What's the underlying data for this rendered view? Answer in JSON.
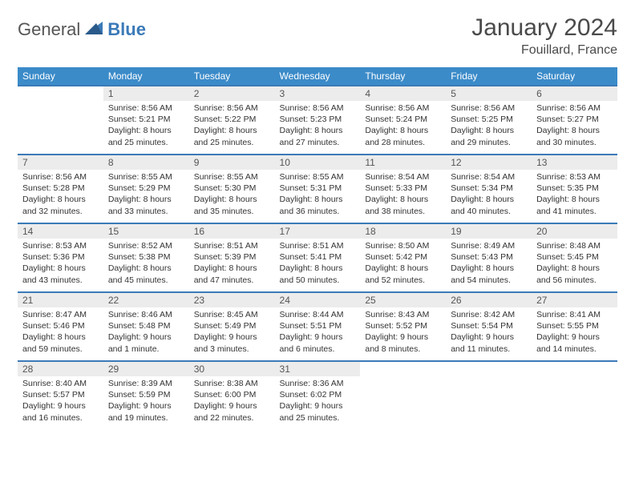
{
  "logo": {
    "general": "General",
    "blue": "Blue"
  },
  "title": "January 2024",
  "subtitle": "Fouillard, France",
  "colors": {
    "brand_blue": "#3b7ab8",
    "header_blue": "#3b8bc9",
    "daynum_bg": "#ececec",
    "text": "#333333",
    "title_text": "#4a4a4a"
  },
  "calendar": {
    "days_of_week": [
      "Sunday",
      "Monday",
      "Tuesday",
      "Wednesday",
      "Thursday",
      "Friday",
      "Saturday"
    ],
    "start_offset": 1,
    "num_days": 31,
    "entries": {
      "1": {
        "sunrise": "8:56 AM",
        "sunset": "5:21 PM",
        "daylight": "8 hours and 25 minutes."
      },
      "2": {
        "sunrise": "8:56 AM",
        "sunset": "5:22 PM",
        "daylight": "8 hours and 25 minutes."
      },
      "3": {
        "sunrise": "8:56 AM",
        "sunset": "5:23 PM",
        "daylight": "8 hours and 27 minutes."
      },
      "4": {
        "sunrise": "8:56 AM",
        "sunset": "5:24 PM",
        "daylight": "8 hours and 28 minutes."
      },
      "5": {
        "sunrise": "8:56 AM",
        "sunset": "5:25 PM",
        "daylight": "8 hours and 29 minutes."
      },
      "6": {
        "sunrise": "8:56 AM",
        "sunset": "5:27 PM",
        "daylight": "8 hours and 30 minutes."
      },
      "7": {
        "sunrise": "8:56 AM",
        "sunset": "5:28 PM",
        "daylight": "8 hours and 32 minutes."
      },
      "8": {
        "sunrise": "8:55 AM",
        "sunset": "5:29 PM",
        "daylight": "8 hours and 33 minutes."
      },
      "9": {
        "sunrise": "8:55 AM",
        "sunset": "5:30 PM",
        "daylight": "8 hours and 35 minutes."
      },
      "10": {
        "sunrise": "8:55 AM",
        "sunset": "5:31 PM",
        "daylight": "8 hours and 36 minutes."
      },
      "11": {
        "sunrise": "8:54 AM",
        "sunset": "5:33 PM",
        "daylight": "8 hours and 38 minutes."
      },
      "12": {
        "sunrise": "8:54 AM",
        "sunset": "5:34 PM",
        "daylight": "8 hours and 40 minutes."
      },
      "13": {
        "sunrise": "8:53 AM",
        "sunset": "5:35 PM",
        "daylight": "8 hours and 41 minutes."
      },
      "14": {
        "sunrise": "8:53 AM",
        "sunset": "5:36 PM",
        "daylight": "8 hours and 43 minutes."
      },
      "15": {
        "sunrise": "8:52 AM",
        "sunset": "5:38 PM",
        "daylight": "8 hours and 45 minutes."
      },
      "16": {
        "sunrise": "8:51 AM",
        "sunset": "5:39 PM",
        "daylight": "8 hours and 47 minutes."
      },
      "17": {
        "sunrise": "8:51 AM",
        "sunset": "5:41 PM",
        "daylight": "8 hours and 50 minutes."
      },
      "18": {
        "sunrise": "8:50 AM",
        "sunset": "5:42 PM",
        "daylight": "8 hours and 52 minutes."
      },
      "19": {
        "sunrise": "8:49 AM",
        "sunset": "5:43 PM",
        "daylight": "8 hours and 54 minutes."
      },
      "20": {
        "sunrise": "8:48 AM",
        "sunset": "5:45 PM",
        "daylight": "8 hours and 56 minutes."
      },
      "21": {
        "sunrise": "8:47 AM",
        "sunset": "5:46 PM",
        "daylight": "8 hours and 59 minutes."
      },
      "22": {
        "sunrise": "8:46 AM",
        "sunset": "5:48 PM",
        "daylight": "9 hours and 1 minute."
      },
      "23": {
        "sunrise": "8:45 AM",
        "sunset": "5:49 PM",
        "daylight": "9 hours and 3 minutes."
      },
      "24": {
        "sunrise": "8:44 AM",
        "sunset": "5:51 PM",
        "daylight": "9 hours and 6 minutes."
      },
      "25": {
        "sunrise": "8:43 AM",
        "sunset": "5:52 PM",
        "daylight": "9 hours and 8 minutes."
      },
      "26": {
        "sunrise": "8:42 AM",
        "sunset": "5:54 PM",
        "daylight": "9 hours and 11 minutes."
      },
      "27": {
        "sunrise": "8:41 AM",
        "sunset": "5:55 PM",
        "daylight": "9 hours and 14 minutes."
      },
      "28": {
        "sunrise": "8:40 AM",
        "sunset": "5:57 PM",
        "daylight": "9 hours and 16 minutes."
      },
      "29": {
        "sunrise": "8:39 AM",
        "sunset": "5:59 PM",
        "daylight": "9 hours and 19 minutes."
      },
      "30": {
        "sunrise": "8:38 AM",
        "sunset": "6:00 PM",
        "daylight": "9 hours and 22 minutes."
      },
      "31": {
        "sunrise": "8:36 AM",
        "sunset": "6:02 PM",
        "daylight": "9 hours and 25 minutes."
      }
    },
    "labels": {
      "sunrise": "Sunrise:",
      "sunset": "Sunset:",
      "daylight": "Daylight:"
    }
  }
}
